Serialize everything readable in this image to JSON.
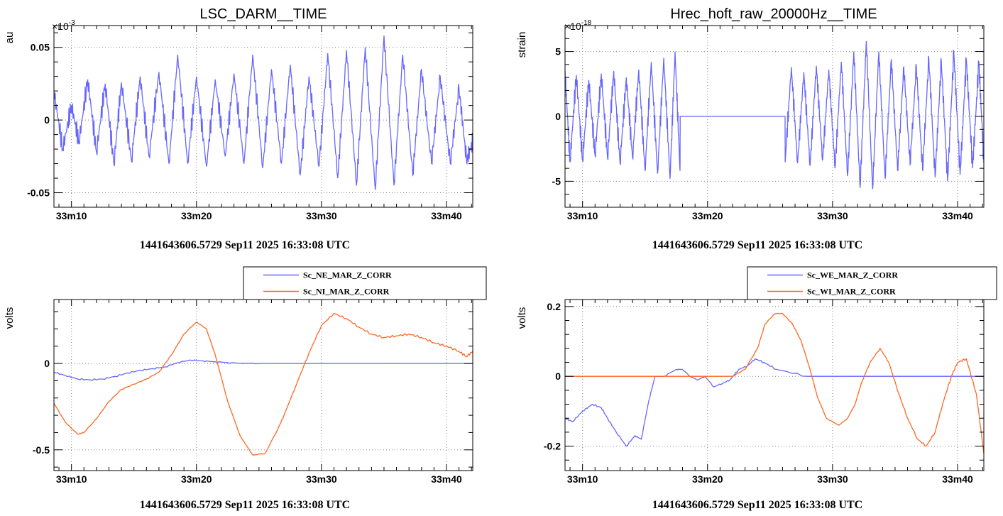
{
  "chart_data": [
    {
      "type": "line",
      "title": "LSC_DARM__TIME",
      "ylabel": "au",
      "xlabel": "1441643606.5729 Sep11 2025 16:33:08 UTC",
      "y_multiplier": "×10",
      "y_multiplier_exp": "-3",
      "xlim": [
        1988.6,
        2022.1
      ],
      "ylim": [
        -0.06,
        0.065
      ],
      "x_ticks": [
        1990,
        2000,
        2010,
        2020
      ],
      "x_tick_labels": [
        "33m10",
        "33m20",
        "33m30",
        "33m40"
      ],
      "y_ticks": [
        -0.05,
        0,
        0.05
      ],
      "y_tick_labels": [
        "-0.05",
        "0",
        "0.05"
      ],
      "grid": true,
      "legend": null,
      "series": [
        {
          "color": "#6666ff",
          "x": [
            1988.6,
            1989.3,
            1990.0,
            1990.6,
            1991.3,
            1992.0,
            1992.7,
            1993.4,
            1994.0,
            1994.8,
            1995.5,
            1996.2,
            1997.0,
            1997.8,
            1998.5,
            1999.3,
            2000.0,
            2000.8,
            2001.5,
            2002.3,
            2003.0,
            2003.8,
            2004.5,
            2005.3,
            2006.0,
            2006.8,
            2007.5,
            2008.3,
            2009.0,
            2009.8,
            2010.5,
            2011.3,
            2012.0,
            2012.8,
            2013.5,
            2014.3,
            2015.0,
            2015.8,
            2016.5,
            2017.3,
            2018.0,
            2018.8,
            2019.5,
            2020.3,
            2021.0,
            2021.6,
            2022.1
          ],
          "y": [
            0.02,
            -0.02,
            0.01,
            -0.015,
            0.028,
            -0.022,
            0.025,
            -0.03,
            0.026,
            -0.028,
            0.03,
            -0.025,
            0.033,
            -0.03,
            0.045,
            -0.03,
            0.03,
            -0.032,
            0.028,
            -0.025,
            0.032,
            -0.03,
            0.045,
            -0.033,
            0.035,
            -0.03,
            0.038,
            -0.038,
            0.03,
            -0.032,
            0.046,
            -0.04,
            0.048,
            -0.045,
            0.05,
            -0.048,
            0.058,
            -0.045,
            0.045,
            -0.038,
            0.035,
            -0.03,
            0.03,
            -0.03,
            0.022,
            -0.028,
            -0.015
          ]
        }
      ]
    },
    {
      "type": "line",
      "title": "Hrec_hoft_raw_20000Hz__TIME",
      "ylabel": "strain",
      "xlabel": "1441643606.5729 Sep11 2025 16:33:08 UTC",
      "y_multiplier": "×10",
      "y_multiplier_exp": "-18",
      "xlim": [
        1988.6,
        2022.1
      ],
      "ylim": [
        -7,
        7
      ],
      "x_ticks": [
        1990,
        2000,
        2010,
        2020
      ],
      "x_tick_labels": [
        "33m10",
        "33m20",
        "33m30",
        "33m40"
      ],
      "y_ticks": [
        -5,
        0,
        5
      ],
      "y_tick_labels": [
        "-5",
        "0",
        "5"
      ],
      "grid": true,
      "legend": null,
      "series": [
        {
          "color": "#6666ff",
          "x": [
            1988.6,
            1989.0,
            1989.5,
            1990.0,
            1990.5,
            1991.0,
            1991.5,
            1992.0,
            1992.5,
            1993.0,
            1993.5,
            1994.0,
            1994.5,
            1995.0,
            1995.5,
            1996.0,
            1996.5,
            1997.0,
            1997.4,
            1997.8,
            1997.81,
            2006.2,
            2006.21,
            2006.7,
            2007.2,
            2007.7,
            2008.2,
            2008.7,
            2009.2,
            2009.7,
            2010.2,
            2010.7,
            2011.2,
            2011.7,
            2012.2,
            2012.7,
            2013.2,
            2013.7,
            2014.2,
            2014.7,
            2015.2,
            2015.7,
            2016.2,
            2016.7,
            2017.2,
            2017.7,
            2018.2,
            2018.7,
            2019.2,
            2019.7,
            2020.2,
            2020.7,
            2021.2,
            2021.7,
            2022.1
          ],
          "y": [
            3.5,
            -3.5,
            3.2,
            -3.4,
            2.8,
            -3.0,
            3.3,
            -3.2,
            3.5,
            -3.6,
            3.0,
            -3.2,
            3.6,
            -4.2,
            4.2,
            -4.4,
            4.5,
            -4.8,
            5.0,
            -4.2,
            0,
            0,
            -3.5,
            3.8,
            -3.6,
            3.4,
            -3.8,
            3.9,
            -3.4,
            3.6,
            -4.0,
            4.2,
            -4.6,
            5.0,
            -5.5,
            5.8,
            -5.6,
            5.0,
            -4.8,
            4.4,
            -4.2,
            3.8,
            -3.7,
            3.9,
            -4.2,
            4.5,
            -4.7,
            4.3,
            -5.0,
            5.0,
            -4.5,
            4.4,
            -4.0,
            4.2,
            -3.6
          ]
        }
      ]
    },
    {
      "type": "line",
      "title": "",
      "ylabel": "volts",
      "xlabel": "1441643606.5729 Sep11 2025 16:33:08 UTC",
      "xlim": [
        1988.6,
        2022.1
      ],
      "ylim": [
        -0.62,
        0.37
      ],
      "x_ticks": [
        1990,
        2000,
        2010,
        2020
      ],
      "x_tick_labels": [
        "33m10",
        "33m20",
        "33m30",
        "33m40"
      ],
      "y_ticks": [
        -0.5,
        0
      ],
      "y_tick_labels": [
        "-0.5",
        "0"
      ],
      "grid": true,
      "legend": "top-right",
      "series": [
        {
          "name": "Sc_NE_MAR_Z_CORR",
          "color": "#6666ff",
          "x": [
            1988.6,
            1989.5,
            1990.5,
            1991.5,
            1992.5,
            1993.5,
            1994.5,
            1995.5,
            1996.5,
            1997.5,
            1998.5,
            1999.5,
            2000.5,
            2001.5,
            2002.5,
            2003.5,
            2005,
            2008,
            2012,
            2016,
            2020,
            2022.1
          ],
          "y": [
            -0.05,
            -0.07,
            -0.09,
            -0.095,
            -0.09,
            -0.075,
            -0.055,
            -0.04,
            -0.03,
            -0.02,
            0.005,
            0.02,
            0.015,
            0.01,
            0.005,
            0.002,
            0,
            0,
            0,
            0,
            0,
            0
          ]
        },
        {
          "name": "Sc_NI_MAR_Z_CORR",
          "color": "#ff6622",
          "x": [
            1988.6,
            1989.5,
            1990.5,
            1991.0,
            1992.0,
            1993.0,
            1994.0,
            1995.0,
            1996.0,
            1997.0,
            1998.0,
            1999.0,
            2000.0,
            2000.8,
            2001.5,
            2002.5,
            2003.5,
            2004.5,
            2005.5,
            2006.5,
            2007.0,
            2008.0,
            2009.0,
            2010.0,
            2011.0,
            2012.0,
            2013.0,
            2014.0,
            2015.0,
            2016.0,
            2017.0,
            2018.0,
            2019.0,
            2020.0,
            2021.0,
            2021.6,
            2022.1
          ],
          "y": [
            -0.23,
            -0.34,
            -0.41,
            -0.4,
            -0.32,
            -0.22,
            -0.15,
            -0.12,
            -0.09,
            -0.05,
            0.05,
            0.17,
            0.24,
            0.2,
            0.05,
            -0.22,
            -0.42,
            -0.53,
            -0.52,
            -0.38,
            -0.3,
            -0.12,
            0.06,
            0.22,
            0.29,
            0.26,
            0.21,
            0.17,
            0.15,
            0.16,
            0.17,
            0.15,
            0.12,
            0.1,
            0.07,
            0.04,
            0.07
          ]
        }
      ]
    },
    {
      "type": "line",
      "title": "",
      "ylabel": "volts",
      "xlabel": "1441643606.5729 Sep11 2025 16:33:08 UTC",
      "xlim": [
        1988.6,
        2022.1
      ],
      "ylim": [
        -0.27,
        0.22
      ],
      "x_ticks": [
        1990,
        2000,
        2010,
        2020
      ],
      "x_tick_labels": [
        "33m10",
        "33m20",
        "33m30",
        "33m40"
      ],
      "y_ticks": [
        -0.2,
        0,
        0.2
      ],
      "y_tick_labels": [
        "-0.2",
        "0",
        "0.2"
      ],
      "grid": true,
      "legend": "top-right",
      "series": [
        {
          "name": "Sc_WE_MAR_Z_CORR",
          "color": "#6666ff",
          "x": [
            1988.6,
            1989.2,
            1990.0,
            1990.8,
            1991.5,
            1992.0,
            1992.7,
            1993.5,
            1994.2,
            1994.7,
            1995.3,
            1995.8,
            1996.5,
            1997.5,
            1998.0,
            1998.6,
            1999.2,
            1999.8,
            2000.5,
            2001.2,
            2001.8,
            2002.5,
            2003.2,
            2003.8,
            2004.5,
            2005.5,
            2008,
            2012,
            2016,
            2020,
            2022.1
          ],
          "y": [
            -0.12,
            -0.13,
            -0.1,
            -0.08,
            -0.09,
            -0.12,
            -0.16,
            -0.2,
            -0.17,
            -0.18,
            -0.07,
            0.0,
            0.0,
            0.02,
            0.02,
            0.0,
            -0.01,
            0.0,
            -0.03,
            -0.02,
            -0.01,
            0.02,
            0.03,
            0.05,
            0.04,
            0.02,
            0,
            0,
            0,
            0,
            0
          ]
        },
        {
          "name": "Sc_WI_MAR_Z_CORR",
          "color": "#ff6622",
          "x": [
            1988.6,
            1992.0,
            1996.0,
            2000.0,
            2002.0,
            2003.0,
            2004.0,
            2004.6,
            2005.4,
            2006.0,
            2006.8,
            2007.5,
            2008.2,
            2008.8,
            2009.5,
            2010.5,
            2011.2,
            2011.8,
            2012.3,
            2013.0,
            2013.8,
            2014.5,
            2015.3,
            2016.0,
            2016.8,
            2017.5,
            2018.2,
            2018.8,
            2019.5,
            2020.0,
            2020.7,
            2021.5,
            2022.1
          ],
          "y": [
            0,
            0,
            0,
            0,
            0,
            0.02,
            0.08,
            0.15,
            0.18,
            0.18,
            0.15,
            0.1,
            0.02,
            -0.06,
            -0.12,
            -0.14,
            -0.12,
            -0.08,
            -0.02,
            0.04,
            0.08,
            0.04,
            -0.05,
            -0.12,
            -0.18,
            -0.2,
            -0.16,
            -0.08,
            0.0,
            0.04,
            0.05,
            -0.05,
            -0.22
          ]
        }
      ]
    }
  ]
}
